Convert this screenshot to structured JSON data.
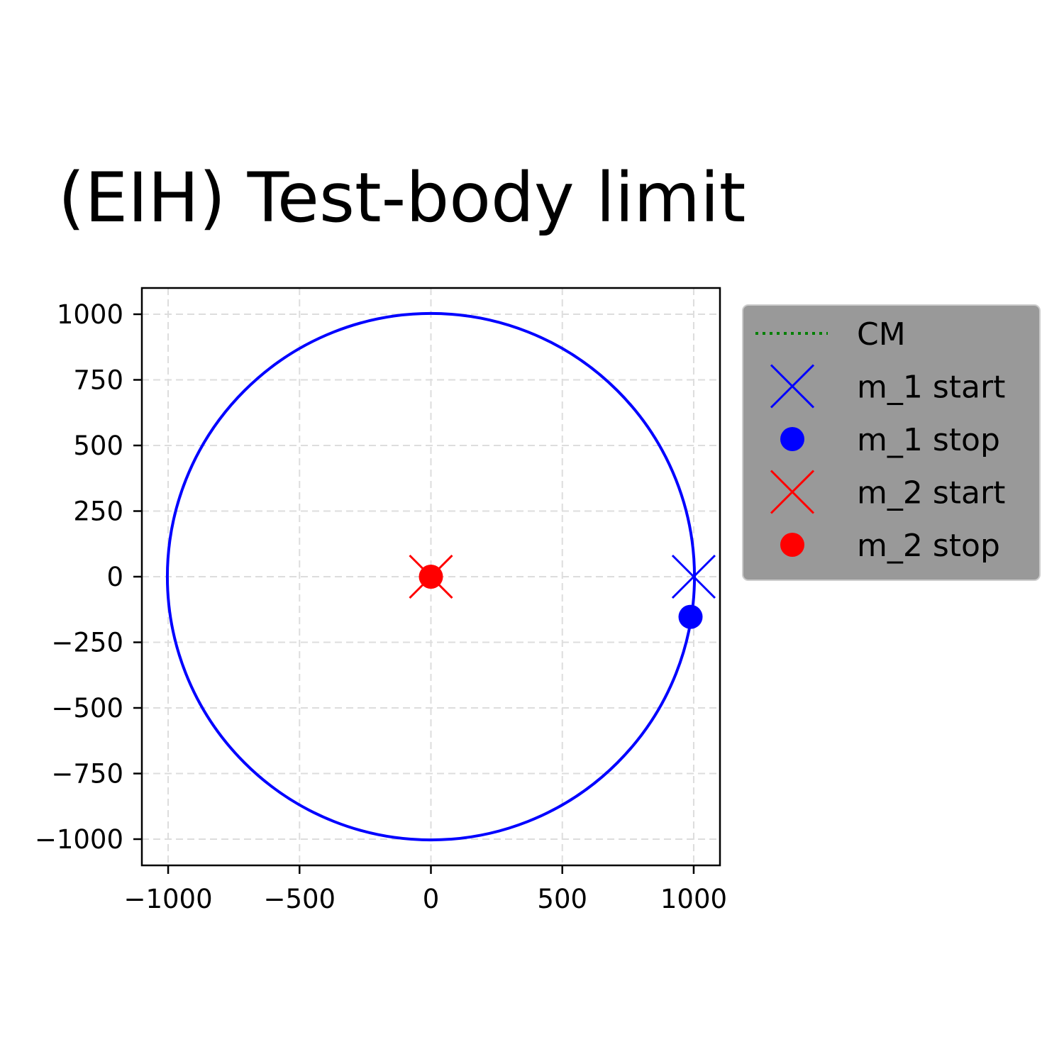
{
  "chart_data": {
    "type": "line",
    "title": "(EIH) Test-body limit",
    "xlabel": "",
    "ylabel": "",
    "xlim": [
      -1100,
      1100
    ],
    "ylim": [
      -1100,
      1100
    ],
    "grid": true,
    "legend_placement": "outside-top-right",
    "x_ticks": [
      -1000,
      -500,
      0,
      500,
      1000
    ],
    "y_ticks": [
      -1000,
      -750,
      -500,
      -250,
      0,
      250,
      500,
      750,
      1000
    ],
    "x_tick_labels": [
      "−1000",
      "−500",
      "0",
      "500",
      "1000"
    ],
    "y_tick_labels": [
      "−1000",
      "−750",
      "−500",
      "−250",
      "0",
      "250",
      "500",
      "750",
      "1000"
    ],
    "series": [
      {
        "name": "CM",
        "kind": "line",
        "style": "dotted",
        "color": "#008000",
        "points": [
          [
            0,
            0
          ]
        ]
      },
      {
        "name": "m_1 start",
        "kind": "marker",
        "marker": "x",
        "color": "#0000ff",
        "points": [
          [
            1000,
            0
          ]
        ]
      },
      {
        "name": "m_1 stop",
        "kind": "marker",
        "marker": "o",
        "color": "#0000ff",
        "points": [
          [
            988,
            -153
          ]
        ]
      },
      {
        "name": "m_2 start",
        "kind": "marker",
        "marker": "x",
        "color": "#ff0000",
        "points": [
          [
            0,
            0
          ]
        ]
      },
      {
        "name": "m_2 stop",
        "kind": "marker",
        "marker": "o",
        "color": "#ff0000",
        "points": [
          [
            0,
            0
          ]
        ]
      }
    ],
    "orbits": [
      {
        "body": "m_1",
        "shape": "circle",
        "center": [
          0,
          0
        ],
        "radius": 1003,
        "color": "#0000ff"
      },
      {
        "body": "m_2",
        "shape": "point",
        "center": [
          0,
          0
        ],
        "color": "#ff0000"
      }
    ],
    "colors": {
      "grid": "#dddddd",
      "legend_bg": "#999999"
    }
  }
}
